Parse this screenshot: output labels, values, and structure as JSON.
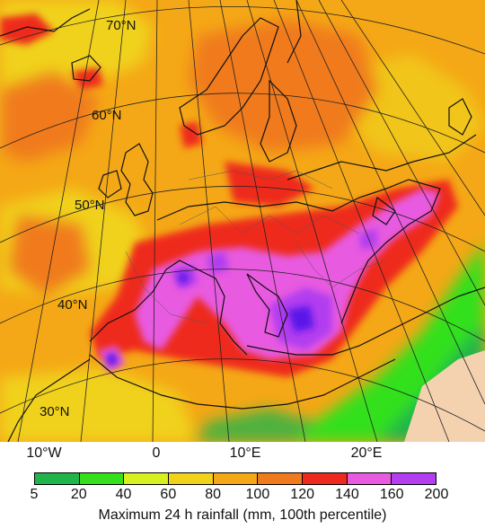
{
  "map": {
    "latitude_labels": [
      "70°N",
      "60°N",
      "50°N",
      "40°N",
      "30°N"
    ],
    "longitude_labels": [
      "10°W",
      "0",
      "10°E",
      "20°E"
    ]
  },
  "colorbar": {
    "title": "Maximum 24 h rainfall (mm, 100th percentile)",
    "ticks": [
      "5",
      "20",
      "40",
      "60",
      "80",
      "100",
      "120",
      "140",
      "160",
      "200"
    ],
    "colors": [
      "#20b44a",
      "#33e01a",
      "#d6f020",
      "#f0d21a",
      "#f5a817",
      "#f07a1e",
      "#ee2a1e",
      "#e85ae0",
      "#b23ef0",
      "#5a18e8"
    ]
  },
  "palette": {
    "ocean_background": "#f09a1c",
    "land_mask": "#f4d2b0"
  }
}
